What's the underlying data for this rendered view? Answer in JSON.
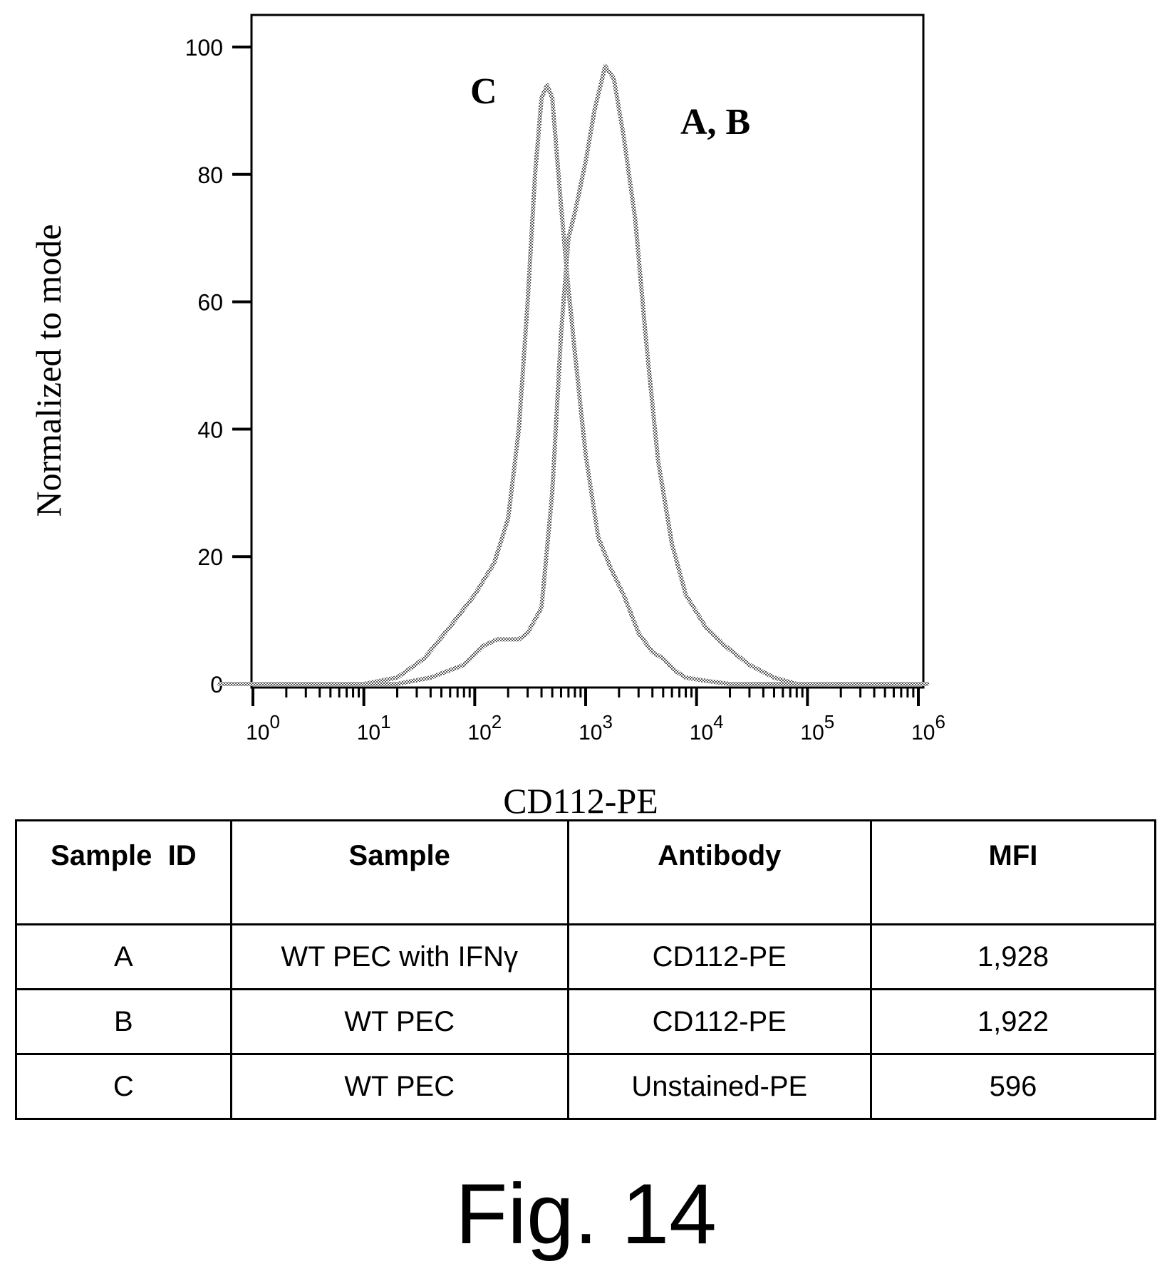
{
  "chart_data": {
    "type": "line",
    "xlabel": "CD112-PE",
    "ylabel": "Normalized to mode",
    "xscale": "log",
    "xlim": [
      0.5,
      1200000
    ],
    "ylim": [
      0,
      100
    ],
    "y_ticks": [
      "0",
      "20",
      "40",
      "60",
      "80",
      "100"
    ],
    "x_ticks": [
      {
        "base": "10",
        "exp": "0",
        "value": 1
      },
      {
        "base": "10",
        "exp": "1",
        "value": 10
      },
      {
        "base": "10",
        "exp": "2",
        "value": 100
      },
      {
        "base": "10",
        "exp": "3",
        "value": 1000
      },
      {
        "base": "10",
        "exp": "4",
        "value": 10000
      },
      {
        "base": "10",
        "exp": "5",
        "value": 100000
      },
      {
        "base": "10",
        "exp": "6",
        "value": 1000000
      }
    ],
    "series": [
      {
        "name": "C",
        "x": [
          0.5,
          5,
          10,
          20,
          35,
          60,
          100,
          150,
          200,
          250,
          300,
          350,
          400,
          450,
          500,
          600,
          700,
          800,
          1000,
          1300,
          1700,
          2200,
          3000,
          4000,
          5000,
          6500,
          8000,
          12000,
          20000,
          1200000
        ],
        "y": [
          0,
          0,
          0,
          1,
          4,
          9,
          14,
          19,
          26,
          40,
          60,
          80,
          92,
          94,
          92,
          75,
          62,
          52,
          36,
          23,
          18,
          14,
          8,
          5,
          4,
          2,
          1,
          0.5,
          0,
          0
        ]
      },
      {
        "name": "A, B",
        "x": [
          0.5,
          10,
          20,
          40,
          80,
          120,
          160,
          200,
          250,
          300,
          400,
          500,
          600,
          700,
          800,
          1000,
          1200,
          1500,
          1800,
          2200,
          2800,
          3500,
          4500,
          6000,
          8000,
          12000,
          18000,
          30000,
          50000,
          80000,
          1200000
        ],
        "y": [
          0,
          0,
          0,
          1,
          3,
          6,
          7,
          7,
          7,
          8,
          12,
          30,
          55,
          70,
          74,
          82,
          90,
          97,
          95,
          86,
          73,
          54,
          35,
          22,
          14,
          9,
          6,
          3,
          1,
          0,
          0
        ]
      }
    ],
    "annotations": [
      "C",
      "A, B"
    ],
    "grid": false,
    "legend": "none"
  },
  "table": {
    "headers": [
      "Sample  ID",
      "Sample",
      "Antibody",
      "MFI"
    ],
    "rows": [
      [
        "A",
        "WT PEC with IFNγ",
        "CD112-PE",
        "1,928"
      ],
      [
        "B",
        "WT PEC",
        "CD112-PE",
        "1,922"
      ],
      [
        "C",
        "WT PEC",
        "Unstained-PE",
        "596"
      ]
    ]
  },
  "caption": "Fig. 14"
}
